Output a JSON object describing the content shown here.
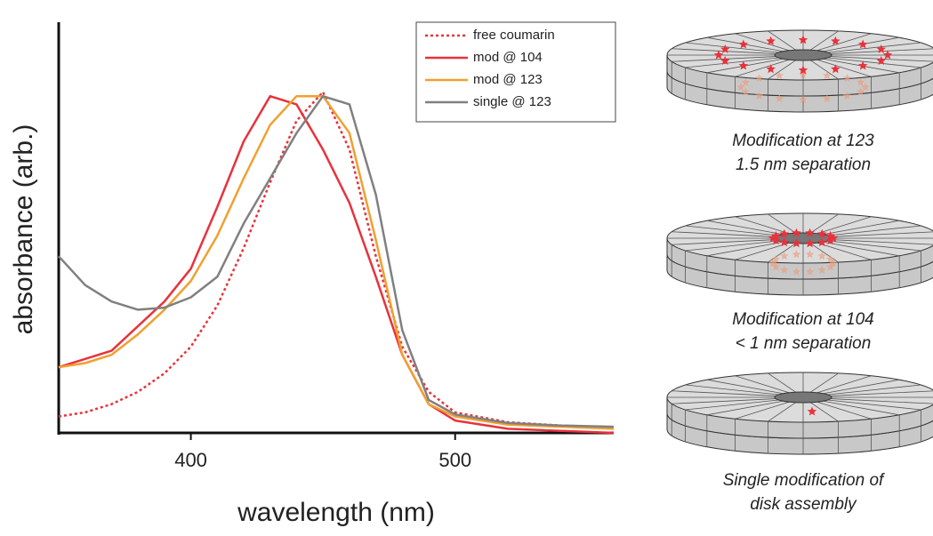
{
  "chart_data": {
    "type": "line",
    "xlabel": "wavelength (nm)",
    "ylabel": "absorbance (arb.)",
    "x": [
      350,
      360,
      370,
      380,
      390,
      400,
      410,
      420,
      430,
      440,
      450,
      460,
      470,
      480,
      490,
      500,
      520,
      540,
      560
    ],
    "xlim": [
      350,
      560
    ],
    "xticks": [
      400,
      500
    ],
    "ylim": [
      0,
      1
    ],
    "legend": "upper right",
    "series": [
      {
        "name": "free coumarin",
        "color": "#e8323c",
        "dash": true,
        "values": [
          0.04,
          0.05,
          0.07,
          0.1,
          0.145,
          0.21,
          0.31,
          0.45,
          0.61,
          0.76,
          0.83,
          0.69,
          0.43,
          0.21,
          0.1,
          0.05,
          0.026,
          0.018,
          0.01
        ]
      },
      {
        "name": "mod @ 104",
        "color": "#e8323c",
        "values": [
          0.16,
          0.18,
          0.2,
          0.26,
          0.32,
          0.4,
          0.55,
          0.71,
          0.82,
          0.8,
          0.69,
          0.56,
          0.38,
          0.19,
          0.07,
          0.03,
          0.01,
          0.005,
          0
        ]
      },
      {
        "name": "mod @ 123",
        "color": "#f0a030",
        "values": [
          0.16,
          0.17,
          0.19,
          0.24,
          0.3,
          0.37,
          0.48,
          0.62,
          0.75,
          0.82,
          0.82,
          0.73,
          0.47,
          0.19,
          0.07,
          0.04,
          0.02,
          0.015,
          0.01
        ]
      },
      {
        "name": "single @ 123",
        "color": "#808080",
        "values": [
          0.43,
          0.36,
          0.32,
          0.3,
          0.305,
          0.33,
          0.38,
          0.51,
          0.62,
          0.73,
          0.82,
          0.8,
          0.58,
          0.25,
          0.08,
          0.045,
          0.024,
          0.018,
          0.015
        ]
      }
    ]
  },
  "diagram": {
    "captions": [
      [
        "Modification at 123",
        "1.5 nm separation"
      ],
      [
        "Modification at 104",
        "< 1 nm separation"
      ],
      [
        "Single modification of",
        "disk assembly"
      ]
    ]
  }
}
